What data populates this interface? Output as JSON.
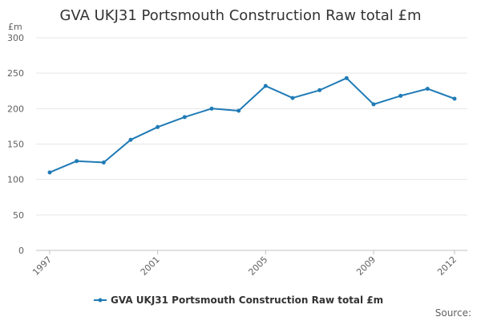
{
  "colors": {
    "series": "#1f7bb6",
    "text": "#333333",
    "axis_text": "#606060",
    "grid": "#e6e6e6"
  },
  "chart_data": {
    "type": "line",
    "title": "GVA UKJ31 Portsmouth Construction Raw total £m",
    "ylabel": "£m",
    "xlabel": "",
    "ylim": [
      0,
      300
    ],
    "yticks": [
      0,
      50,
      100,
      150,
      200,
      250,
      300
    ],
    "xlim": [
      1997,
      2012
    ],
    "xtick_labels": [
      "1997",
      "2001",
      "2005",
      "2009",
      "2012"
    ],
    "grid": true,
    "legend_placement": "bottom",
    "x": [
      1997,
      1998,
      1999,
      2000,
      2001,
      2002,
      2003,
      2004,
      2005,
      2006,
      2007,
      2008,
      2009,
      2010,
      2011,
      2012
    ],
    "series": [
      {
        "name": "GVA UKJ31 Portsmouth Construction Raw total £m",
        "values": [
          110,
          126,
          124,
          156,
          174,
          188,
          200,
          197,
          232,
          215,
          226,
          243,
          206,
          218,
          228,
          214
        ]
      }
    ],
    "source_label": "Source:"
  }
}
